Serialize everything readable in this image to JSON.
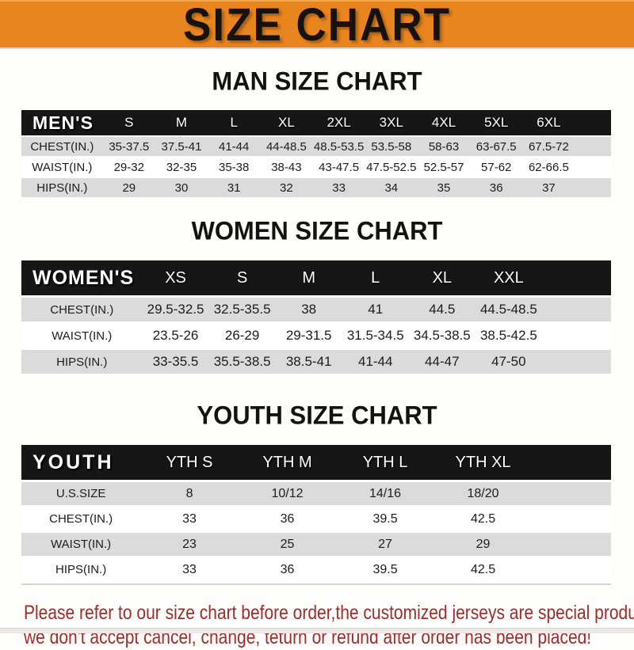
{
  "banner": {
    "title": "SIZE CHART",
    "background_color": "#E8851E",
    "text_color": "#151210"
  },
  "sections": {
    "man_heading": "MAN SIZE CHART",
    "women_heading": "WOMEN SIZE CHART",
    "youth_heading": "YOUTH SIZE CHART"
  },
  "tables": {
    "men": {
      "name_label": "MEN'S",
      "sizes": [
        "S",
        "M",
        "L",
        "XL",
        "2XL",
        "3XL",
        "4XL",
        "5XL",
        "6XL"
      ],
      "rows": [
        {
          "label": "CHEST(IN.)",
          "values": [
            "35-37.5",
            "37.5-41",
            "41-44",
            "44-48.5",
            "48.5-53.5",
            "53.5-58",
            "58-63",
            "63-67.5",
            "67.5-72"
          ]
        },
        {
          "label": "WAIST(IN.)",
          "values": [
            "29-32",
            "32-35",
            "35-38",
            "38-43",
            "43-47.5",
            "47.5-52.5",
            "52.5-57",
            "57-62",
            "62-66.5"
          ]
        },
        {
          "label": "HIPS(IN.)",
          "values": [
            "29",
            "30",
            "31",
            "32",
            "33",
            "34",
            "35",
            "36",
            "37"
          ]
        }
      ]
    },
    "women": {
      "name_label": "WOMEN'S",
      "sizes": [
        "XS",
        "S",
        "M",
        "L",
        "XL",
        "XXL"
      ],
      "rows": [
        {
          "label": "CHEST(IN.)",
          "values": [
            "29.5-32.5",
            "32.5-35.5",
            "38",
            "41",
            "44.5",
            "44.5-48.5"
          ]
        },
        {
          "label": "WAIST(IN.)",
          "values": [
            "23.5-26",
            "26-29",
            "29-31.5",
            "31.5-34.5",
            "34.5-38.5",
            "38.5-42.5"
          ]
        },
        {
          "label": "HIPS(IN.)",
          "values": [
            "33-35.5",
            "35.5-38.5",
            "38.5-41",
            "41-44",
            "44-47",
            "47-50"
          ]
        }
      ]
    },
    "youth": {
      "name_label": "YOUTH",
      "sizes": [
        "YTH S",
        "YTH M",
        "YTH L",
        "YTH XL"
      ],
      "rows": [
        {
          "label": "U.S.SIZE",
          "values": [
            "8",
            "10/12",
            "14/16",
            "18/20"
          ]
        },
        {
          "label": "CHEST(IN.)",
          "values": [
            "33",
            "36",
            "39.5",
            "42.5"
          ]
        },
        {
          "label": "WAIST(IN.)",
          "values": [
            "23",
            "25",
            "27",
            "29"
          ]
        },
        {
          "label": "HIPS(IN.)",
          "values": [
            "33",
            "36",
            "39.5",
            "42.5"
          ]
        }
      ]
    }
  },
  "footer": {
    "line1": "Please refer to our size chart before order,the customized jerseys are special products,",
    "line2": "we don't accept cancel, change, teturn or refund after order has been placed!",
    "text_color": "#A02C2C"
  },
  "colors": {
    "accent_orange": "#E8851E",
    "header_black": "#161616",
    "row_gray": "#DBDBDB",
    "note_red": "#A02C2C"
  }
}
